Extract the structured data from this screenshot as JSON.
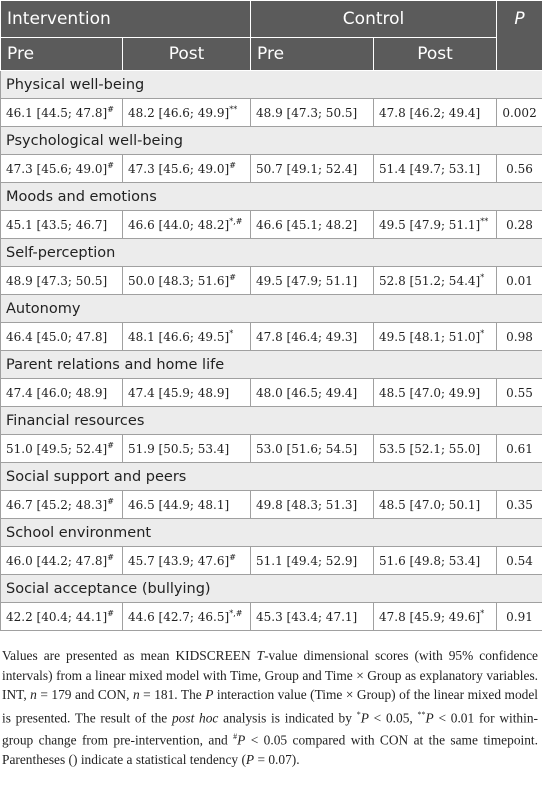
{
  "header": {
    "intervention": "Intervention",
    "control": "Control",
    "p": "P",
    "sub": [
      "Pre",
      "Post",
      "Pre",
      "Post"
    ]
  },
  "rows": [
    {
      "section": "Physical well-being",
      "cells": [
        [
          "46.1 [44.5; 47.8]",
          "#"
        ],
        [
          "48.2 [46.6; 49.9]",
          "**"
        ],
        [
          "48.9 [47.3; 50.5]"
        ],
        [
          "47.8 [46.2; 49.4]"
        ]
      ],
      "p": "0.002"
    },
    {
      "section": "Psychological well-being",
      "cells": [
        [
          "47.3 [45.6; 49.0]",
          "#"
        ],
        [
          "47.3 [45.6; 49.0]",
          "#"
        ],
        [
          "50.7 [49.1; 52.4]"
        ],
        [
          "51.4 [49.7; 53.1]"
        ]
      ],
      "p": "0.56"
    },
    {
      "section": "Moods and emotions",
      "cells": [
        [
          "45.1 [43.5; 46.7]"
        ],
        [
          "46.6 [44.0; 48.2]",
          "*,#"
        ],
        [
          "46.6 [45.1; 48.2]"
        ],
        [
          "49.5 [47.9; 51.1]",
          "**"
        ]
      ],
      "p": "0.28"
    },
    {
      "section": "Self-perception",
      "cells": [
        [
          "48.9 [47.3; 50.5]"
        ],
        [
          "50.0 [48.3; 51.6]",
          "#"
        ],
        [
          "49.5 [47.9; 51.1]"
        ],
        [
          "52.8 [51.2; 54.4]",
          "*"
        ]
      ],
      "p": "0.01"
    },
    {
      "section": "Autonomy",
      "cells": [
        [
          "46.4 [45.0; 47.8]"
        ],
        [
          "48.1 [46.6; 49.5]",
          "*"
        ],
        [
          "47.8 [46.4; 49.3]"
        ],
        [
          "49.5 [48.1; 51.0]",
          "*"
        ]
      ],
      "p": "0.98"
    },
    {
      "section": "Parent relations and home life",
      "cells": [
        [
          "47.4 [46.0; 48.9]"
        ],
        [
          "47.4 [45.9; 48.9]"
        ],
        [
          "48.0 [46.5; 49.4]"
        ],
        [
          "48.5 [47.0; 49.9]"
        ]
      ],
      "p": "0.55"
    },
    {
      "section": "Financial resources",
      "cells": [
        [
          "51.0 [49.5; 52.4]",
          "#"
        ],
        [
          "51.9 [50.5; 53.4]"
        ],
        [
          "53.0 [51.6; 54.5]"
        ],
        [
          "53.5 [52.1; 55.0]"
        ]
      ],
      "p": "0.61"
    },
    {
      "section": "Social support and peers",
      "cells": [
        [
          "46.7 [45.2; 48.3]",
          "#"
        ],
        [
          "46.5 [44.9; 48.1]"
        ],
        [
          "49.8 [48.3; 51.3]"
        ],
        [
          "48.5 [47.0; 50.1]"
        ]
      ],
      "p": "0.35"
    },
    {
      "section": "School environment",
      "cells": [
        [
          "46.0 [44.2; 47.8]",
          "#"
        ],
        [
          "45.7 [43.9; 47.6]",
          "#"
        ],
        [
          "51.1 [49.4; 52.9]"
        ],
        [
          "51.6 [49.8; 53.4]"
        ]
      ],
      "p": "0.54"
    },
    {
      "section": "Social acceptance (bullying)",
      "cells": [
        [
          "42.2 [40.4; 44.1]",
          "#"
        ],
        [
          "44.6 [42.7; 46.5]",
          "*,#"
        ],
        [
          "45.3 [43.4; 47.1]"
        ],
        [
          "47.8 [45.9; 49.6]",
          "*"
        ]
      ],
      "p": "0.91"
    }
  ],
  "footnote": [
    "Values are presented as mean KIDSCREEN ",
    {
      "text": "T",
      "style": "italic"
    },
    "-value dimensional scores (with 95% confidence intervals) from a linear mixed model with Time, Group and Time × Group as explanatory variables. INT, ",
    {
      "text": "n",
      "style": "italic"
    },
    " = 179 and CON, ",
    {
      "text": "n",
      "style": "italic"
    },
    " = 181. The ",
    {
      "text": "P",
      "style": "italic"
    },
    " interaction value (Time × Group) of the linear mixed model is presented. The result of the ",
    {
      "text": "post hoc",
      "style": "italic"
    },
    " analysis is indicated by ",
    {
      "text": "*",
      "style": "sup"
    },
    {
      "text": "P",
      "style": "italic"
    },
    " < 0.05, ",
    {
      "text": "**",
      "style": "sup"
    },
    {
      "text": "P",
      "style": "italic"
    },
    " < 0.01 for within-group change from pre-intervention, and ",
    {
      "text": "#",
      "style": "sup"
    },
    {
      "text": "P",
      "style": "italic"
    },
    " < 0.05 compared with CON at the same timepoint. Parentheses () indicate a statistical tendency (",
    {
      "text": "P",
      "style": "italic"
    },
    " = 0.07)."
  ]
}
